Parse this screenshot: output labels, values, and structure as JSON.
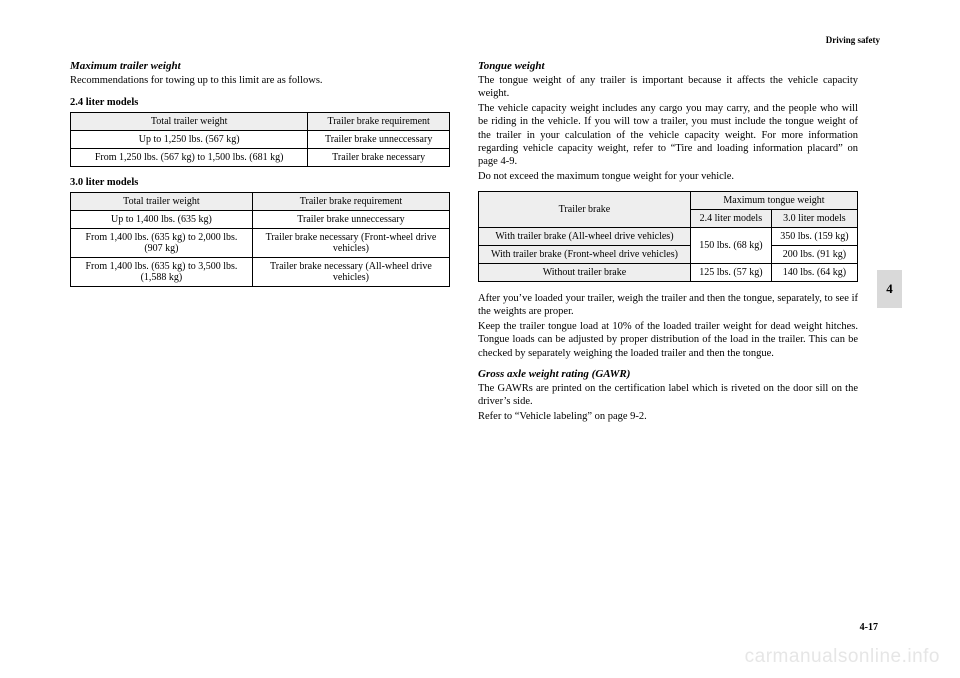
{
  "header": {
    "section": "Driving safety"
  },
  "left": {
    "h1": "Maximum trailer weight",
    "intro": "Recommendations for towing up to this limit are as follows.",
    "m24_label": "2.4 liter models",
    "t24": {
      "h1": "Total trailer weight",
      "h2": "Trailer brake requirement",
      "rows": [
        [
          "Up to 1,250 lbs. (567 kg)",
          "Trailer brake unneccessary"
        ],
        [
          "From 1,250 lbs. (567 kg) to 1,500 lbs. (681 kg)",
          "Trailer brake necessary"
        ]
      ]
    },
    "m30_label": "3.0 liter models",
    "t30": {
      "h1": "Total trailer weight",
      "h2": "Trailer brake requirement",
      "rows": [
        [
          "Up to 1,400 lbs. (635 kg)",
          "Trailer brake unneccessary"
        ],
        [
          "From 1,400 lbs. (635 kg) to 2,000 lbs. (907 kg)",
          "Trailer brake necessary (Front-wheel drive vehicles)"
        ],
        [
          "From 1,400 lbs. (635 kg) to 3,500 lbs. (1,588 kg)",
          "Trailer brake necessary (All-wheel drive vehicles)"
        ]
      ]
    }
  },
  "right": {
    "h1": "Tongue weight",
    "p1": "The tongue weight of any trailer is important because it affects the vehicle capacity weight.",
    "p2": "The vehicle capacity weight includes any cargo you may carry, and the people who will be riding in the vehicle. If you will tow a trailer, you must include the tongue weight of the trailer in your calculation of the vehicle capacity weight. For more information regarding vehicle capacity weight, refer to “Tire and loading information placard” on page 4-9.",
    "p3": "Do not exceed the maximum tongue weight for your vehicle.",
    "tongue_table": {
      "h_brake": "Trailer brake",
      "h_max": "Maximum tongue weight",
      "h_24": "2.4 liter models",
      "h_30": "3.0 liter models",
      "r1_label": "With trailer brake (All-wheel drive vehicles)",
      "r1_30": "350 lbs. (159 kg)",
      "r12_24": "150 lbs. (68 kg)",
      "r2_label": "With trailer brake (Front-wheel drive vehicles)",
      "r2_30": "200 lbs. (91 kg)",
      "r3_label": "Without trailer brake",
      "r3_24": "125 lbs. (57 kg)",
      "r3_30": "140 lbs. (64 kg)"
    },
    "p4": "After you’ve loaded your trailer, weigh the trailer and then the tongue, separately, to see if the weights are proper.",
    "p5": "Keep the trailer tongue load at 10% of the loaded trailer weight for dead weight hitches. Tongue loads can be adjusted by proper distribution of the load in the trailer. This can be checked by separately weighing the loaded trailer and then the tongue.",
    "h2": "Gross axle weight rating (GAWR)",
    "p6": "The GAWRs are printed on the certification label which is riveted on the door sill on the driver’s side.",
    "p7": "Refer to “Vehicle labeling” on page 9-2."
  },
  "tab": "4",
  "page_num": "4-17",
  "watermark": "carmanualsonline.info"
}
